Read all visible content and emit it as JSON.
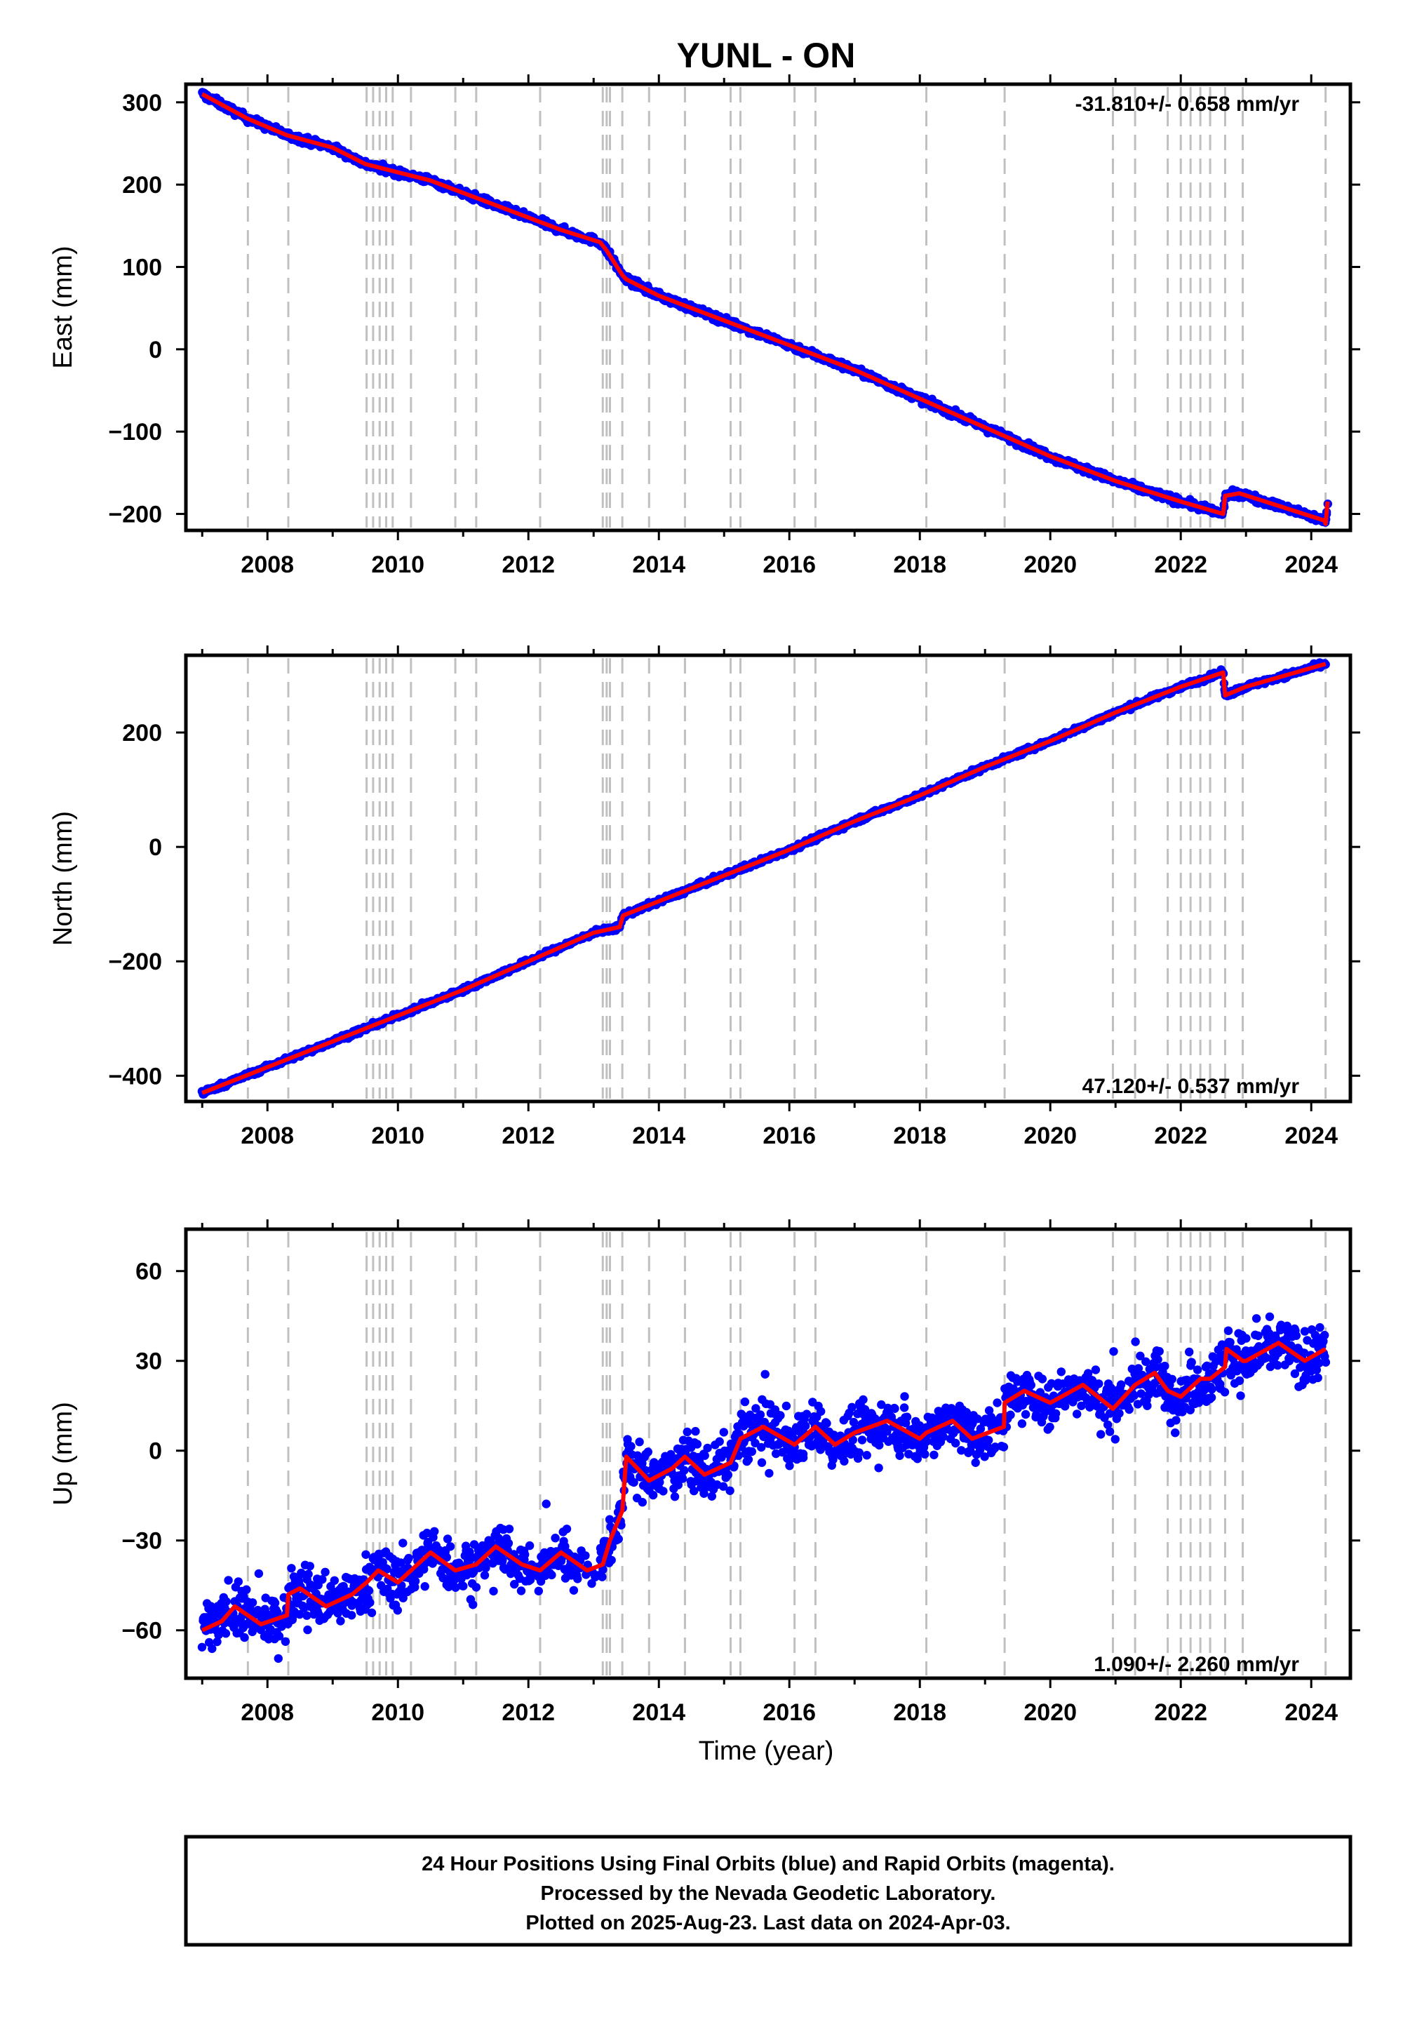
{
  "title": "YUNL - ON",
  "xlabel": "Time (year)",
  "footer": {
    "line1": "24 Hour Positions Using Final Orbits (blue) and Rapid Orbits (magenta).",
    "line2": "Processed by the Nevada Geodetic Laboratory.",
    "line3": "Plotted on 2025-Aug-23. Last data on 2024-Apr-03."
  },
  "colors": {
    "final_orbits": "#0000ff",
    "model": "#ff0000",
    "event_lines": "#c0c0c0"
  },
  "x_ticks": [
    "2008",
    "2010",
    "2012",
    "2014",
    "2016",
    "2018",
    "2020",
    "2022",
    "2024"
  ],
  "x_range": [
    2006.75,
    2024.6
  ],
  "event_lines": [
    2007.7,
    2008.32,
    2009.52,
    2009.62,
    2009.72,
    2009.82,
    2009.92,
    2010.2,
    2010.88,
    2011.2,
    2012.18,
    2013.14,
    2013.2,
    2013.25,
    2013.44,
    2013.85,
    2014.4,
    2015.1,
    2015.25,
    2016.08,
    2016.4,
    2018.1,
    2019.3,
    2020.96,
    2021.3,
    2021.8,
    2022.0,
    2022.15,
    2022.3,
    2022.45,
    2022.68,
    2022.95,
    2024.22
  ],
  "chart_data": [
    {
      "type": "scatter",
      "name": "east",
      "ylabel": "East (mm)",
      "ylim": [
        -220,
        322
      ],
      "y_ticks": [
        300,
        200,
        100,
        0,
        -100,
        -200
      ],
      "y_tick_labels": [
        "300",
        "200",
        "100",
        "0",
        "−100",
        "−200"
      ],
      "rate_label": "-31.810+/- 0.658 mm/yr",
      "rate_position": "top-right",
      "noise": 3,
      "model": {
        "x": [
          2007.0,
          2007.7,
          2008.3,
          2009.0,
          2009.5,
          2010.0,
          2010.5,
          2011.0,
          2012.0,
          2012.5,
          2013.1,
          2013.2,
          2013.44,
          2013.5,
          2014.0,
          2015.0,
          2016.0,
          2017.0,
          2018.0,
          2019.0,
          2020.0,
          2021.0,
          2022.0,
          2022.65,
          2022.68,
          2022.9,
          2024.2,
          2024.22,
          2024.25
        ],
        "y": [
          310,
          280,
          260,
          245,
          225,
          215,
          205,
          190,
          160,
          145,
          130,
          120,
          90,
          85,
          65,
          35,
          5,
          -25,
          -60,
          -95,
          -130,
          -160,
          -185,
          -200,
          -178,
          -175,
          -208,
          -212,
          -185
        ]
      }
    },
    {
      "type": "scatter",
      "name": "north",
      "ylabel": "North (mm)",
      "ylim": [
        -445,
        335
      ],
      "y_ticks": [
        200,
        0,
        -200,
        -400
      ],
      "y_tick_labels": [
        "200",
        "0",
        "−200",
        "−400"
      ],
      "rate_label": "47.120+/- 0.537 mm/yr",
      "rate_position": "bottom-right",
      "noise": 3,
      "model": {
        "x": [
          2007.0,
          2008.0,
          2009.0,
          2010.0,
          2011.0,
          2012.0,
          2013.0,
          2013.4,
          2013.45,
          2014.0,
          2015.0,
          2016.0,
          2017.0,
          2018.0,
          2019.0,
          2020.0,
          2021.0,
          2022.0,
          2022.65,
          2022.68,
          2023.0,
          2024.22
        ],
        "y": [
          -430,
          -385,
          -340,
          -295,
          -250,
          -200,
          -150,
          -140,
          -120,
          -95,
          -50,
          -5,
          45,
          90,
          140,
          185,
          235,
          280,
          305,
          265,
          280,
          320
        ]
      }
    },
    {
      "type": "scatter",
      "name": "up",
      "ylabel": "Up (mm)",
      "ylim": [
        -76,
        74
      ],
      "y_ticks": [
        60,
        30,
        0,
        -30,
        -60
      ],
      "y_tick_labels": [
        "60",
        "30",
        "0",
        "−30",
        "−60"
      ],
      "rate_label": "1.090+/- 2.260 mm/yr",
      "rate_position": "bottom-right",
      "noise": 6,
      "model": {
        "x": [
          2007.0,
          2007.3,
          2007.5,
          2007.9,
          2008.3,
          2008.32,
          2008.5,
          2008.9,
          2009.3,
          2009.52,
          2009.7,
          2010.0,
          2010.2,
          2010.5,
          2010.88,
          2011.2,
          2011.5,
          2011.9,
          2012.18,
          2012.5,
          2012.9,
          2013.14,
          2013.25,
          2013.44,
          2013.5,
          2013.85,
          2014.2,
          2014.4,
          2014.7,
          2015.1,
          2015.25,
          2015.6,
          2016.08,
          2016.4,
          2016.7,
          2017.0,
          2017.5,
          2018.0,
          2018.1,
          2018.5,
          2018.8,
          2019.29,
          2019.3,
          2019.6,
          2020.0,
          2020.5,
          2020.96,
          2021.3,
          2021.6,
          2021.8,
          2022.0,
          2022.3,
          2022.45,
          2022.68,
          2022.7,
          2022.95,
          2023.0,
          2023.5,
          2023.9,
          2024.22
        ],
        "y": [
          -60,
          -57,
          -52,
          -58,
          -55,
          -48,
          -46,
          -52,
          -48,
          -44,
          -40,
          -44,
          -40,
          -34,
          -40,
          -38,
          -32,
          -38,
          -40,
          -34,
          -40,
          -38,
          -30,
          -20,
          -2,
          -10,
          -6,
          -2,
          -8,
          -4,
          4,
          8,
          2,
          8,
          2,
          6,
          10,
          4,
          6,
          10,
          4,
          8,
          16,
          20,
          16,
          22,
          14,
          22,
          26,
          20,
          18,
          24,
          24,
          28,
          34,
          30,
          30,
          36,
          30,
          34
        ]
      }
    }
  ]
}
